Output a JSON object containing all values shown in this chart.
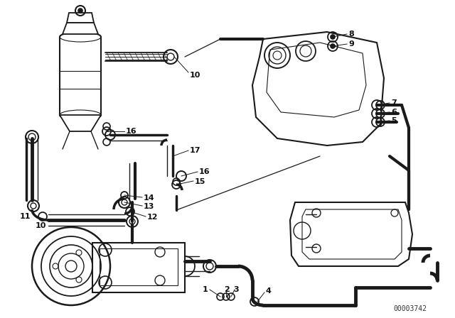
{
  "background_color": "#ffffff",
  "part_number": "00003742",
  "line_color": "#1a1a1a",
  "lw_thick": 2.5,
  "lw_med": 1.5,
  "lw_thin": 0.9,
  "lw_hose": 3.5
}
